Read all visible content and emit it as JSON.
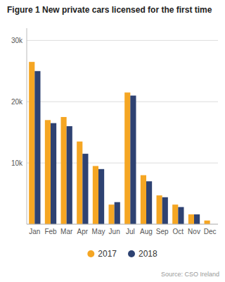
{
  "chart_data": {
    "type": "bar",
    "title": "Figure 1 New private cars licensed for the first time",
    "categories": [
      "Jan",
      "Feb",
      "Mar",
      "Apr",
      "May",
      "Jun",
      "Jul",
      "Aug",
      "Sep",
      "Oct",
      "Nov",
      "Dec"
    ],
    "series": [
      {
        "name": "2017",
        "color": "#F5A623",
        "values": [
          26500,
          17000,
          17500,
          13500,
          9500,
          3200,
          21500,
          8000,
          4700,
          3200,
          1600,
          600
        ]
      },
      {
        "name": "2018",
        "color": "#2E4272",
        "values": [
          25000,
          16500,
          16000,
          11500,
          9000,
          3600,
          21000,
          7000,
          4400,
          2800,
          1600,
          0
        ]
      }
    ],
    "ylim": [
      0,
      32000
    ],
    "yticks": [
      {
        "value": 0,
        "label": null
      },
      {
        "value": 10000,
        "label": "10k"
      },
      {
        "value": 20000,
        "label": "20k"
      },
      {
        "value": 30000,
        "label": "30k"
      }
    ],
    "grid": true,
    "legend": "bottom",
    "annotations": [
      "Source: CSO Ireland"
    ]
  }
}
